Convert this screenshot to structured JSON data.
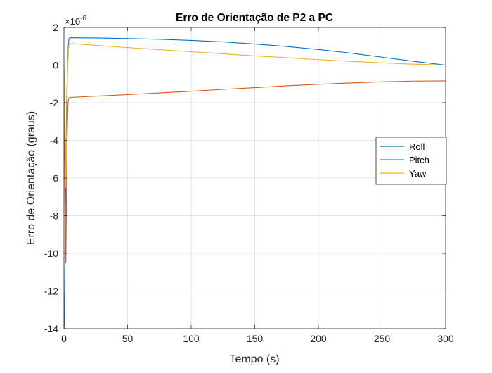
{
  "chart_data": {
    "type": "line",
    "title": "Erro de Orientação de P2 a PC",
    "xlabel": "Tempo (s)",
    "ylabel": "Erro de Orientação (graus)",
    "y_exponent_label": "×10",
    "y_exponent_power": "-6",
    "xlim": [
      0,
      300
    ],
    "ylim": [
      -14,
      2
    ],
    "y_scale": 1e-06,
    "xticks": [
      0,
      50,
      100,
      150,
      200,
      250,
      300
    ],
    "yticks": [
      -14,
      -12,
      -10,
      -8,
      -6,
      -4,
      -2,
      0,
      2
    ],
    "grid": true,
    "legend_position": "right",
    "series": [
      {
        "name": "Roll",
        "color": "#0072BD",
        "x": [
          0,
          0.5,
          1,
          1.5,
          2,
          2.5,
          3,
          3.5,
          4,
          5,
          10,
          25,
          50,
          75,
          100,
          125,
          150,
          175,
          200,
          225,
          250,
          275,
          300
        ],
        "y": [
          -14,
          -13.5,
          -9.0,
          -5.5,
          -2.6,
          -0.8,
          0.4,
          1.1,
          1.4,
          1.45,
          1.45,
          1.44,
          1.41,
          1.37,
          1.31,
          1.23,
          1.12,
          0.99,
          0.83,
          0.64,
          0.42,
          0.2,
          0.0
        ]
      },
      {
        "name": "Pitch",
        "color": "#D95319",
        "x": [
          0,
          0.5,
          1,
          1.5,
          2,
          2.5,
          3,
          3.5,
          4,
          5,
          25,
          50,
          75,
          100,
          125,
          150,
          175,
          200,
          225,
          250,
          275,
          300
        ],
        "y": [
          0,
          -4.0,
          -9.5,
          -10.5,
          -7.0,
          -4.0,
          -2.3,
          -1.85,
          -1.75,
          -1.72,
          -1.65,
          -1.57,
          -1.48,
          -1.39,
          -1.29,
          -1.2,
          -1.1,
          -1.02,
          -0.95,
          -0.89,
          -0.85,
          -0.84
        ]
      },
      {
        "name": "Yaw",
        "color": "#EDB120",
        "x": [
          0,
          0.5,
          1,
          1.5,
          2,
          2.5,
          3,
          3.5,
          4,
          5,
          25,
          50,
          75,
          100,
          125,
          150,
          175,
          200,
          225,
          250,
          275,
          300
        ],
        "y": [
          0,
          -2.0,
          -5.0,
          -6.5,
          -4.0,
          -1.5,
          0.0,
          0.8,
          1.12,
          1.15,
          1.05,
          0.93,
          0.82,
          0.71,
          0.6,
          0.49,
          0.39,
          0.29,
          0.2,
          0.12,
          0.05,
          0.0
        ]
      }
    ]
  }
}
